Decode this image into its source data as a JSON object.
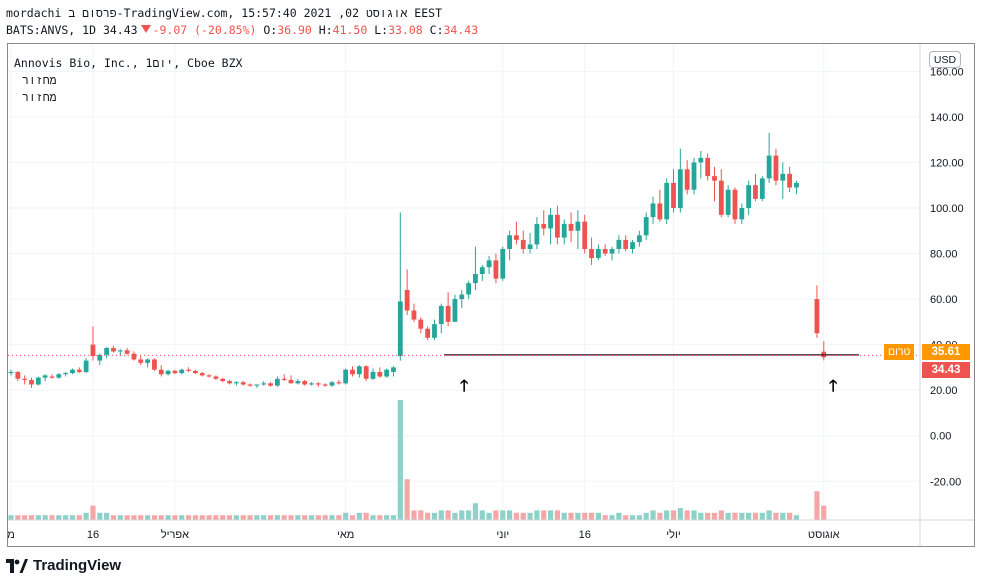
{
  "header": {
    "line1": "mordachi פרסום ב-TradingView.com,  אוגוסט 02, 2021 15:57:40 EEST",
    "symbol": "BATS:ANVS, 1D",
    "last": "34.43",
    "change": "-9.07 (-20.85%)",
    "o_label": "O:",
    "o_val": "36.90",
    "h_label": "H:",
    "h_val": "41.50",
    "l_label": "L:",
    "l_val": "33.08",
    "c_label": "C:",
    "c_val": "34.43"
  },
  "legend": {
    "title": "Annovis Bio, Inc., 1יום, Cboe BZX",
    "volume1": "מחזור",
    "volume2": "מחזור"
  },
  "currency": "USD",
  "tags": {
    "preclose_label": "טרום",
    "preclose_value": "35.61",
    "last_value": "34.43"
  },
  "brand": "TradingView",
  "colors": {
    "up": "#26a69a",
    "down": "#ef5350",
    "vol_up": "#8ed1c9",
    "vol_down": "#f4a7a6",
    "preclose": "#ff9800"
  },
  "chart_data": {
    "type": "candlestick",
    "ylim": [
      -37,
      172
    ],
    "y_ticks": [
      "160.00",
      "140.00",
      "120.00",
      "100.00",
      "80.00",
      "60.00",
      "40.00",
      "20.00",
      "0.00",
      "-20.00"
    ],
    "y_tick_values": [
      160,
      140,
      120,
      100,
      80,
      60,
      40,
      20,
      0,
      -20
    ],
    "x_labels": [
      {
        "i": 0,
        "label": "מ"
      },
      {
        "i": 12,
        "label": "16"
      },
      {
        "i": 24,
        "label": "אפריל"
      },
      {
        "i": 49,
        "label": "מאי"
      },
      {
        "i": 72,
        "label": "יוני"
      },
      {
        "i": 84,
        "label": "16"
      },
      {
        "i": 97,
        "label": "יולי"
      },
      {
        "i": 119,
        "label": "אוגוסט"
      }
    ],
    "horizontal_line": 35.5,
    "candles": [
      [
        27.5,
        29.0,
        26.5,
        28.0,
        2
      ],
      [
        28.0,
        28.5,
        24.0,
        25.0,
        2
      ],
      [
        25.0,
        26.5,
        22.5,
        24.5,
        2
      ],
      [
        24.5,
        25.5,
        21.0,
        22.5,
        2
      ],
      [
        22.5,
        26.0,
        22.0,
        25.5,
        2
      ],
      [
        25.5,
        27.0,
        24.0,
        26.5,
        2
      ],
      [
        26.0,
        27.0,
        25.0,
        25.5,
        2
      ],
      [
        25.5,
        27.5,
        25.0,
        27.0,
        2
      ],
      [
        27.0,
        28.0,
        26.0,
        27.5,
        2
      ],
      [
        27.5,
        29.5,
        27.0,
        29.0,
        2
      ],
      [
        29.0,
        30.0,
        27.5,
        28.0,
        2
      ],
      [
        28.0,
        34.0,
        27.5,
        33.0,
        3
      ],
      [
        40.0,
        48.0,
        33.0,
        35.0,
        6
      ],
      [
        33.0,
        36.0,
        31.0,
        35.5,
        3
      ],
      [
        35.5,
        39.0,
        34.0,
        38.5,
        3
      ],
      [
        38.5,
        39.5,
        36.5,
        37.0,
        2
      ],
      [
        37.0,
        38.0,
        35.0,
        37.5,
        2
      ],
      [
        37.5,
        38.5,
        35.5,
        36.0,
        2
      ],
      [
        36.0,
        37.0,
        33.0,
        33.5,
        2
      ],
      [
        33.5,
        35.0,
        31.0,
        32.0,
        2
      ],
      [
        32.0,
        34.0,
        30.0,
        33.5,
        2
      ],
      [
        33.5,
        34.0,
        28.5,
        29.0,
        2
      ],
      [
        29.0,
        31.0,
        26.0,
        27.0,
        2
      ],
      [
        27.0,
        29.0,
        26.5,
        28.5,
        2
      ],
      [
        28.5,
        29.0,
        27.0,
        27.5,
        2
      ],
      [
        27.5,
        29.5,
        27.0,
        29.0,
        2
      ],
      [
        29.0,
        30.0,
        28.0,
        28.5,
        2
      ],
      [
        28.5,
        29.0,
        27.0,
        27.5,
        2
      ],
      [
        27.5,
        28.0,
        26.0,
        26.5,
        2
      ],
      [
        26.5,
        27.0,
        25.5,
        26.0,
        2
      ],
      [
        26.0,
        26.5,
        24.5,
        25.0,
        2
      ],
      [
        25.0,
        25.5,
        23.5,
        24.0,
        2
      ],
      [
        24.0,
        24.5,
        22.5,
        23.0,
        2
      ],
      [
        23.0,
        24.0,
        22.0,
        23.5,
        2
      ],
      [
        23.5,
        24.0,
        22.0,
        22.5,
        2
      ],
      [
        22.5,
        23.0,
        21.5,
        22.0,
        2
      ],
      [
        22.0,
        22.5,
        21.0,
        22.5,
        2
      ],
      [
        22.5,
        24.0,
        22.0,
        23.0,
        2
      ],
      [
        23.0,
        23.5,
        21.5,
        22.0,
        2
      ],
      [
        22.0,
        26.0,
        21.5,
        25.0,
        2
      ],
      [
        25.0,
        27.0,
        24.0,
        24.5,
        2
      ],
      [
        24.5,
        26.5,
        23.0,
        23.0,
        2
      ],
      [
        23.0,
        25.0,
        22.5,
        24.0,
        2
      ],
      [
        24.0,
        24.5,
        22.0,
        22.5,
        2
      ],
      [
        22.5,
        23.5,
        22.0,
        23.0,
        2
      ],
      [
        23.0,
        23.5,
        21.5,
        22.5,
        2
      ],
      [
        22.5,
        23.0,
        21.5,
        22.0,
        2
      ],
      [
        22.0,
        24.0,
        21.5,
        23.5,
        2
      ],
      [
        23.5,
        24.5,
        22.5,
        23.0,
        2
      ],
      [
        23.0,
        29.5,
        22.5,
        29.0,
        3
      ],
      [
        29.0,
        30.5,
        26.0,
        27.0,
        2
      ],
      [
        27.0,
        31.0,
        25.5,
        30.5,
        3
      ],
      [
        30.5,
        31.0,
        24.0,
        25.0,
        3
      ],
      [
        25.0,
        29.5,
        24.5,
        28.0,
        2
      ],
      [
        28.0,
        30.0,
        25.5,
        26.0,
        2
      ],
      [
        26.0,
        29.5,
        25.5,
        29.0,
        2
      ],
      [
        28.0,
        30.5,
        26.0,
        30.0,
        2
      ],
      [
        35.0,
        98.0,
        33.0,
        59.0,
        50
      ],
      [
        64.0,
        73.0,
        53.0,
        55.0,
        17
      ],
      [
        55.0,
        58.0,
        50.0,
        51.0,
        4
      ],
      [
        51.0,
        52.0,
        45.0,
        47.0,
        4
      ],
      [
        47.0,
        48.0,
        42.0,
        43.0,
        3
      ],
      [
        43.0,
        51.0,
        42.0,
        49.0,
        3
      ],
      [
        49.0,
        58.0,
        45.0,
        57.0,
        4
      ],
      [
        57.0,
        63.0,
        48.0,
        50.0,
        4
      ],
      [
        50.0,
        62.0,
        50.0,
        60.0,
        3
      ],
      [
        60.0,
        64.0,
        56.0,
        62.0,
        4
      ],
      [
        62.0,
        68.0,
        60.0,
        67.0,
        4
      ],
      [
        67.0,
        83.0,
        64.0,
        71.0,
        7
      ],
      [
        71.0,
        75.0,
        68.0,
        74.0,
        4
      ],
      [
        74.0,
        79.0,
        71.0,
        77.0,
        3
      ],
      [
        77.0,
        80.0,
        67.0,
        69.0,
        4
      ],
      [
        69.0,
        83.0,
        68.0,
        82.0,
        4
      ],
      [
        82.0,
        90.0,
        77.0,
        88.0,
        4
      ],
      [
        88.0,
        94.0,
        84.0,
        86.0,
        3
      ],
      [
        86.0,
        90.0,
        80.0,
        82.0,
        3
      ],
      [
        82.0,
        89.0,
        80.0,
        84.0,
        3
      ],
      [
        84.0,
        96.0,
        82.0,
        93.0,
        4
      ],
      [
        93.0,
        99.0,
        88.0,
        91.0,
        4
      ],
      [
        91.0,
        100.0,
        84.0,
        97.0,
        4
      ],
      [
        97.0,
        101.0,
        84.0,
        87.0,
        4
      ],
      [
        87.0,
        95.0,
        84.0,
        93.0,
        3
      ],
      [
        93.0,
        98.0,
        85.0,
        90.0,
        3
      ],
      [
        90.0,
        99.0,
        82.0,
        94.0,
        3
      ],
      [
        94.0,
        97.0,
        80.0,
        82.0,
        3
      ],
      [
        82.0,
        87.0,
        75.0,
        78.0,
        3
      ],
      [
        78.0,
        84.0,
        77.0,
        82.0,
        3
      ],
      [
        82.0,
        84.0,
        79.0,
        80.0,
        2
      ],
      [
        80.0,
        83.0,
        77.0,
        82.0,
        2
      ],
      [
        82.0,
        88.0,
        80.0,
        86.0,
        3
      ],
      [
        86.0,
        88.0,
        81.0,
        82.0,
        2
      ],
      [
        82.0,
        86.0,
        80.0,
        85.0,
        2
      ],
      [
        85.0,
        90.0,
        83.0,
        88.0,
        2
      ],
      [
        88.0,
        98.0,
        86.0,
        96.0,
        3
      ],
      [
        96.0,
        105.0,
        93.0,
        102.0,
        4
      ],
      [
        102.0,
        108.0,
        94.0,
        95.0,
        3
      ],
      [
        95.0,
        113.0,
        93.0,
        111.0,
        4
      ],
      [
        111.0,
        117.0,
        98.0,
        100.0,
        4
      ],
      [
        100.0,
        126.0,
        98.0,
        117.0,
        5
      ],
      [
        117.0,
        121.0,
        106.0,
        108.0,
        4
      ],
      [
        108.0,
        122.0,
        106.0,
        120.0,
        4
      ],
      [
        120.0,
        125.0,
        113.0,
        122.0,
        3
      ],
      [
        122.0,
        124.0,
        112.0,
        114.0,
        3
      ],
      [
        114.0,
        118.0,
        103.0,
        112.0,
        3
      ],
      [
        112.0,
        117.0,
        96.0,
        97.0,
        4
      ],
      [
        97.0,
        110.0,
        96.0,
        108.0,
        3
      ],
      [
        108.0,
        109.0,
        93.0,
        95.0,
        3
      ],
      [
        95.0,
        102.0,
        93.0,
        100.0,
        3
      ],
      [
        100.0,
        112.0,
        97.0,
        110.0,
        3
      ],
      [
        110.0,
        115.0,
        103.0,
        104.0,
        3
      ],
      [
        104.0,
        114.0,
        103.0,
        113.0,
        3
      ],
      [
        113.0,
        133.0,
        111.0,
        123.0,
        4
      ],
      [
        123.0,
        126.0,
        110.0,
        112.0,
        3
      ],
      [
        112.0,
        120.0,
        104.0,
        115.0,
        3
      ],
      [
        115.0,
        118.0,
        107.0,
        109.0,
        3
      ],
      [
        109.0,
        112.0,
        106.0,
        111.0,
        2
      ],
      [
        null,
        null,
        null,
        null,
        0
      ],
      [
        null,
        null,
        null,
        null,
        0
      ],
      [
        60.0,
        66.0,
        43.0,
        45.0,
        12
      ],
      [
        36.9,
        41.5,
        33.08,
        34.43,
        6
      ]
    ]
  }
}
